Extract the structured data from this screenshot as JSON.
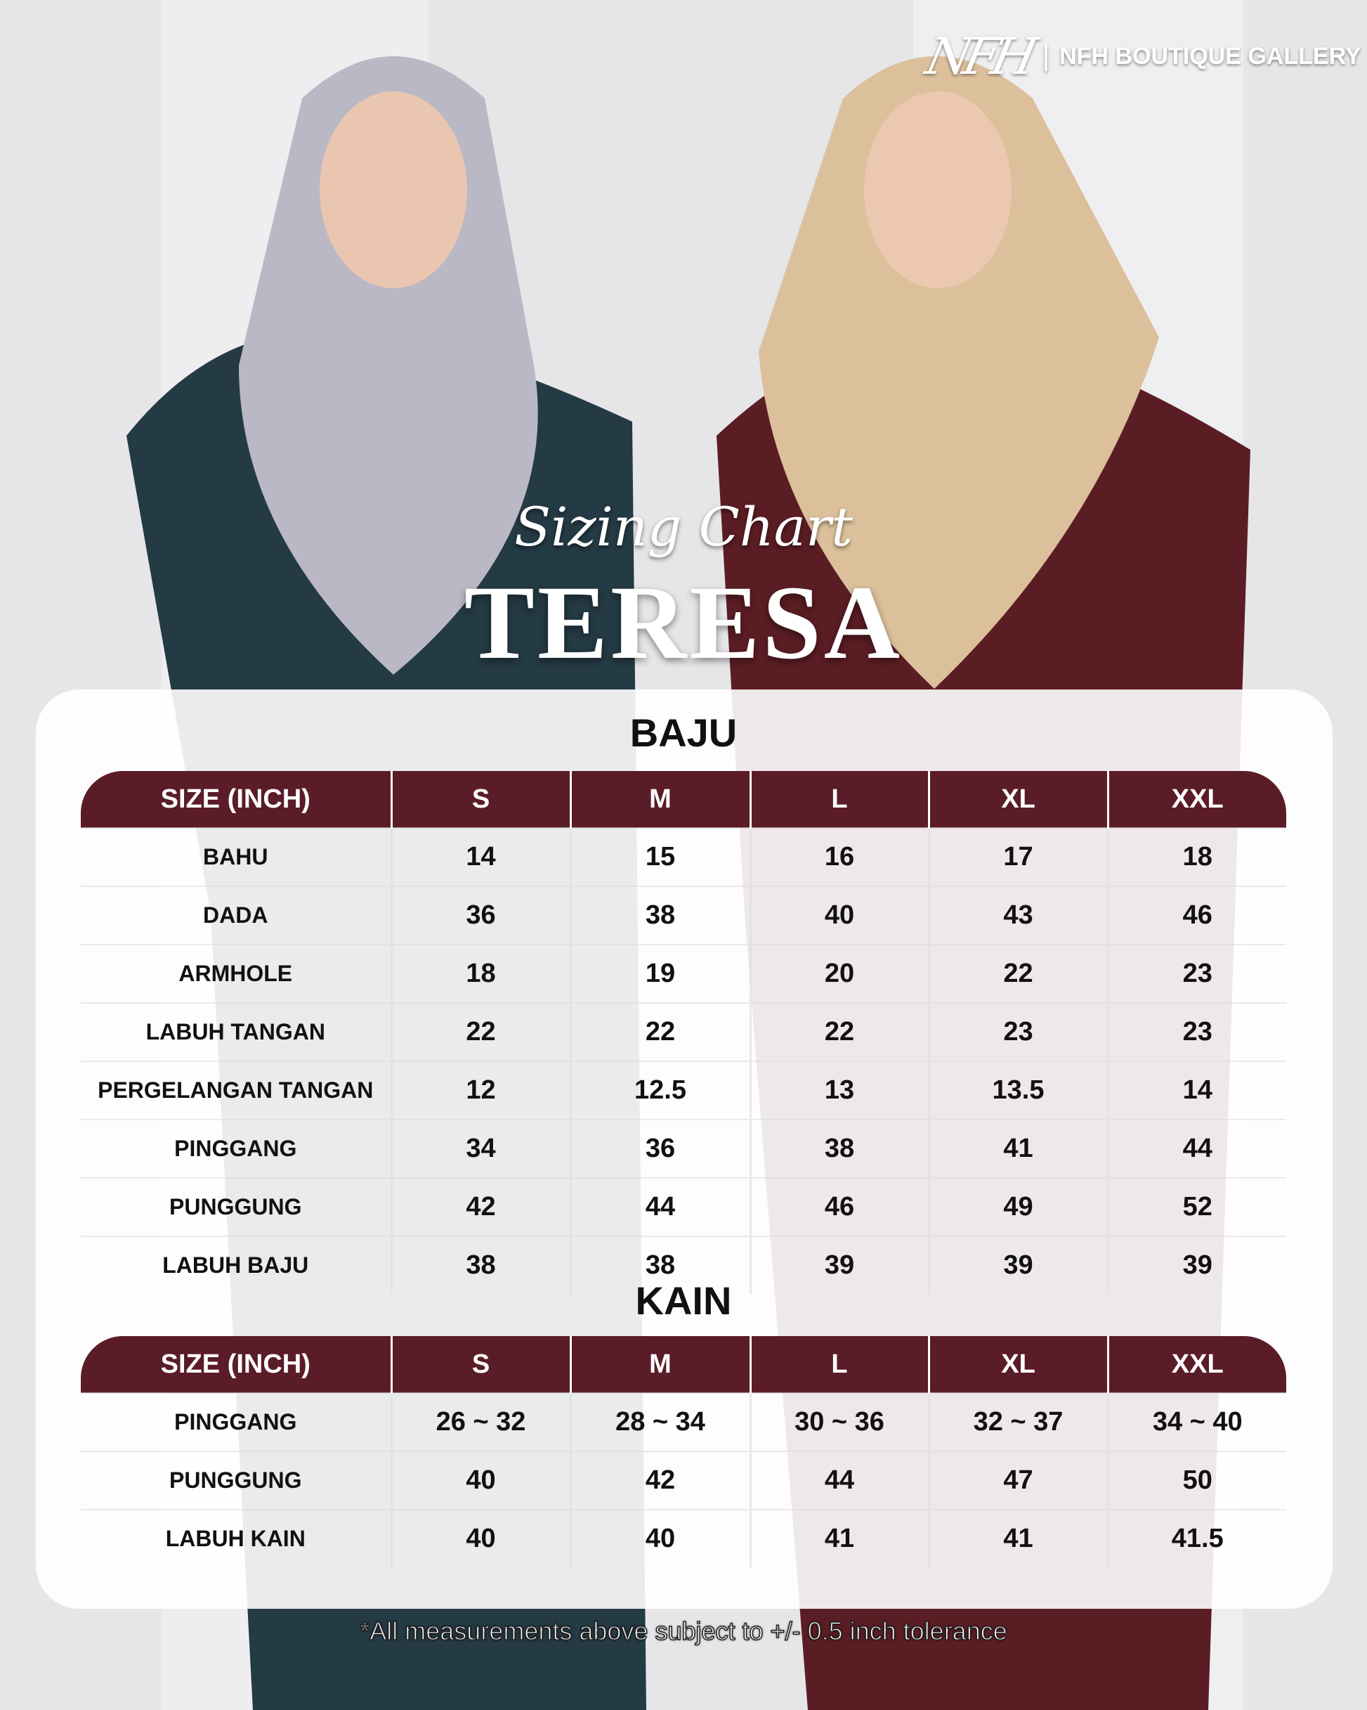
{
  "brand": {
    "logo_mark": "NFH",
    "separator": "|",
    "name": "NFH BOUTIQUE GALLERY"
  },
  "subtitle": "Sizing Chart",
  "title": "TERESA",
  "colors": {
    "header": "#5a1c27",
    "card": "#ffffff"
  },
  "baju": {
    "title": "BAJU",
    "columns": [
      "SIZE (INCH)",
      "S",
      "M",
      "L",
      "XL",
      "XXL"
    ],
    "rows": [
      {
        "label": "BAHU",
        "values": [
          "14",
          "15",
          "16",
          "17",
          "18"
        ]
      },
      {
        "label": "DADA",
        "values": [
          "36",
          "38",
          "40",
          "43",
          "46"
        ]
      },
      {
        "label": "ARMHOLE",
        "values": [
          "18",
          "19",
          "20",
          "22",
          "23"
        ]
      },
      {
        "label": "LABUH TANGAN",
        "values": [
          "22",
          "22",
          "22",
          "23",
          "23"
        ]
      },
      {
        "label": "PERGELANGAN TANGAN",
        "values": [
          "12",
          "12.5",
          "13",
          "13.5",
          "14"
        ]
      },
      {
        "label": "PINGGANG",
        "values": [
          "34",
          "36",
          "38",
          "41",
          "44"
        ]
      },
      {
        "label": "PUNGGUNG",
        "values": [
          "42",
          "44",
          "46",
          "49",
          "52"
        ]
      },
      {
        "label": "LABUH BAJU",
        "values": [
          "38",
          "38",
          "39",
          "39",
          "39"
        ]
      }
    ]
  },
  "kain": {
    "title": "KAIN",
    "columns": [
      "SIZE (INCH)",
      "S",
      "M",
      "L",
      "XL",
      "XXL"
    ],
    "rows": [
      {
        "label": "PINGGANG",
        "values": [
          "26 ~ 32",
          "28 ~ 34",
          "30 ~ 36",
          "32 ~ 37",
          "34 ~ 40"
        ]
      },
      {
        "label": "PUNGGUNG",
        "values": [
          "40",
          "42",
          "44",
          "47",
          "50"
        ]
      },
      {
        "label": "LABUH KAIN",
        "values": [
          "40",
          "40",
          "41",
          "41",
          "41.5"
        ]
      }
    ]
  },
  "note": "*All measurements above subject to +/- 0.5 inch tolerance"
}
